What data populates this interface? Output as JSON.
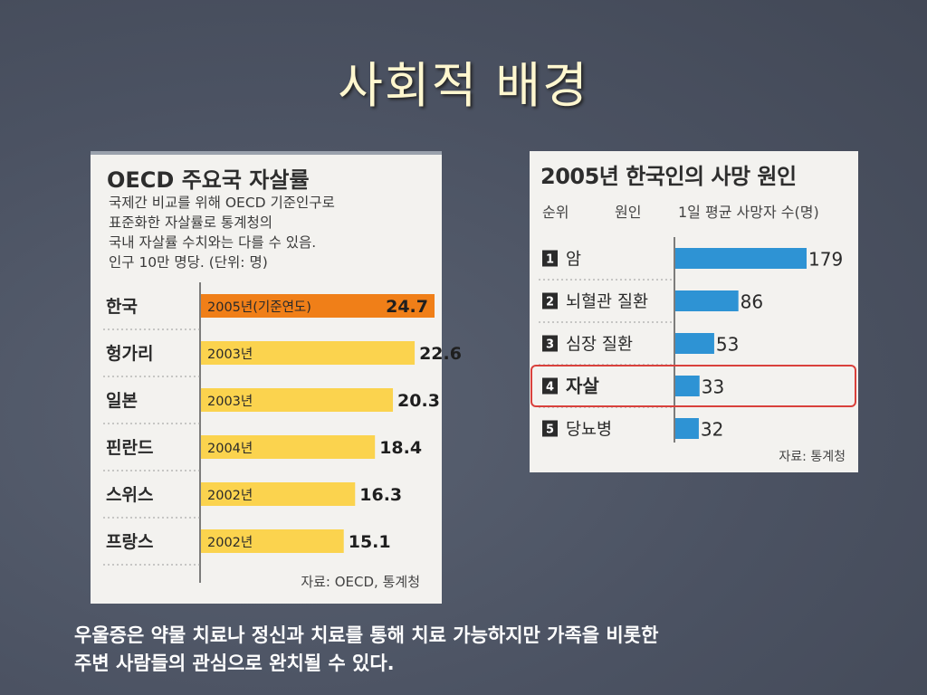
{
  "slide": {
    "title": "사회적 배경",
    "caption_line1": "우울증은 약물 치료나 정신과 치료를 통해 치료 가능하지만 가족을 비롯한",
    "caption_line2": "주변 사람들의 관심으로 완치될 수 있다."
  },
  "chart_data": [
    {
      "type": "bar",
      "title": "OECD 주요국 자살률",
      "note": [
        "국제간 비교를 위해 OECD 기준인구로",
        "표준화한 자살률로 통계청의",
        "국내 자살률 수치와는 다를 수 있음.",
        "인구 10만 명당. (단위: 명)"
      ],
      "categories": [
        "한국",
        "헝가리",
        "일본",
        "핀란드",
        "스위스",
        "프랑스"
      ],
      "years": [
        "2005년(기준연도)",
        "2003년",
        "2003년",
        "2004년",
        "2002년",
        "2002년"
      ],
      "values": [
        24.7,
        22.6,
        20.3,
        18.4,
        16.3,
        15.1
      ],
      "value_labels": [
        "24.7",
        "22.6",
        "20.3",
        "18.4",
        "16.3",
        "15.1"
      ],
      "colors": {
        "highlight": "#f07f18",
        "default": "#fbd34e"
      },
      "source": "자료: OECD, 통계청"
    },
    {
      "type": "bar",
      "title": "2005년 한국인의 사망 원인",
      "headers": {
        "rank": "순위",
        "cause": "원인",
        "value": "1일 평균 사망자 수(명)"
      },
      "ranks": [
        "1",
        "2",
        "3",
        "4",
        "5"
      ],
      "categories": [
        "암",
        "뇌혈관 질환",
        "심장 질환",
        "자살",
        "당뇨병"
      ],
      "values": [
        179,
        86,
        53,
        33,
        32
      ],
      "value_labels": [
        "179",
        "86",
        "53",
        "33",
        "32"
      ],
      "highlight_index": 3,
      "colors": {
        "bar": "#2e93d4",
        "highlight_border": "#d9413c"
      },
      "source": "자료: 통계청"
    }
  ]
}
